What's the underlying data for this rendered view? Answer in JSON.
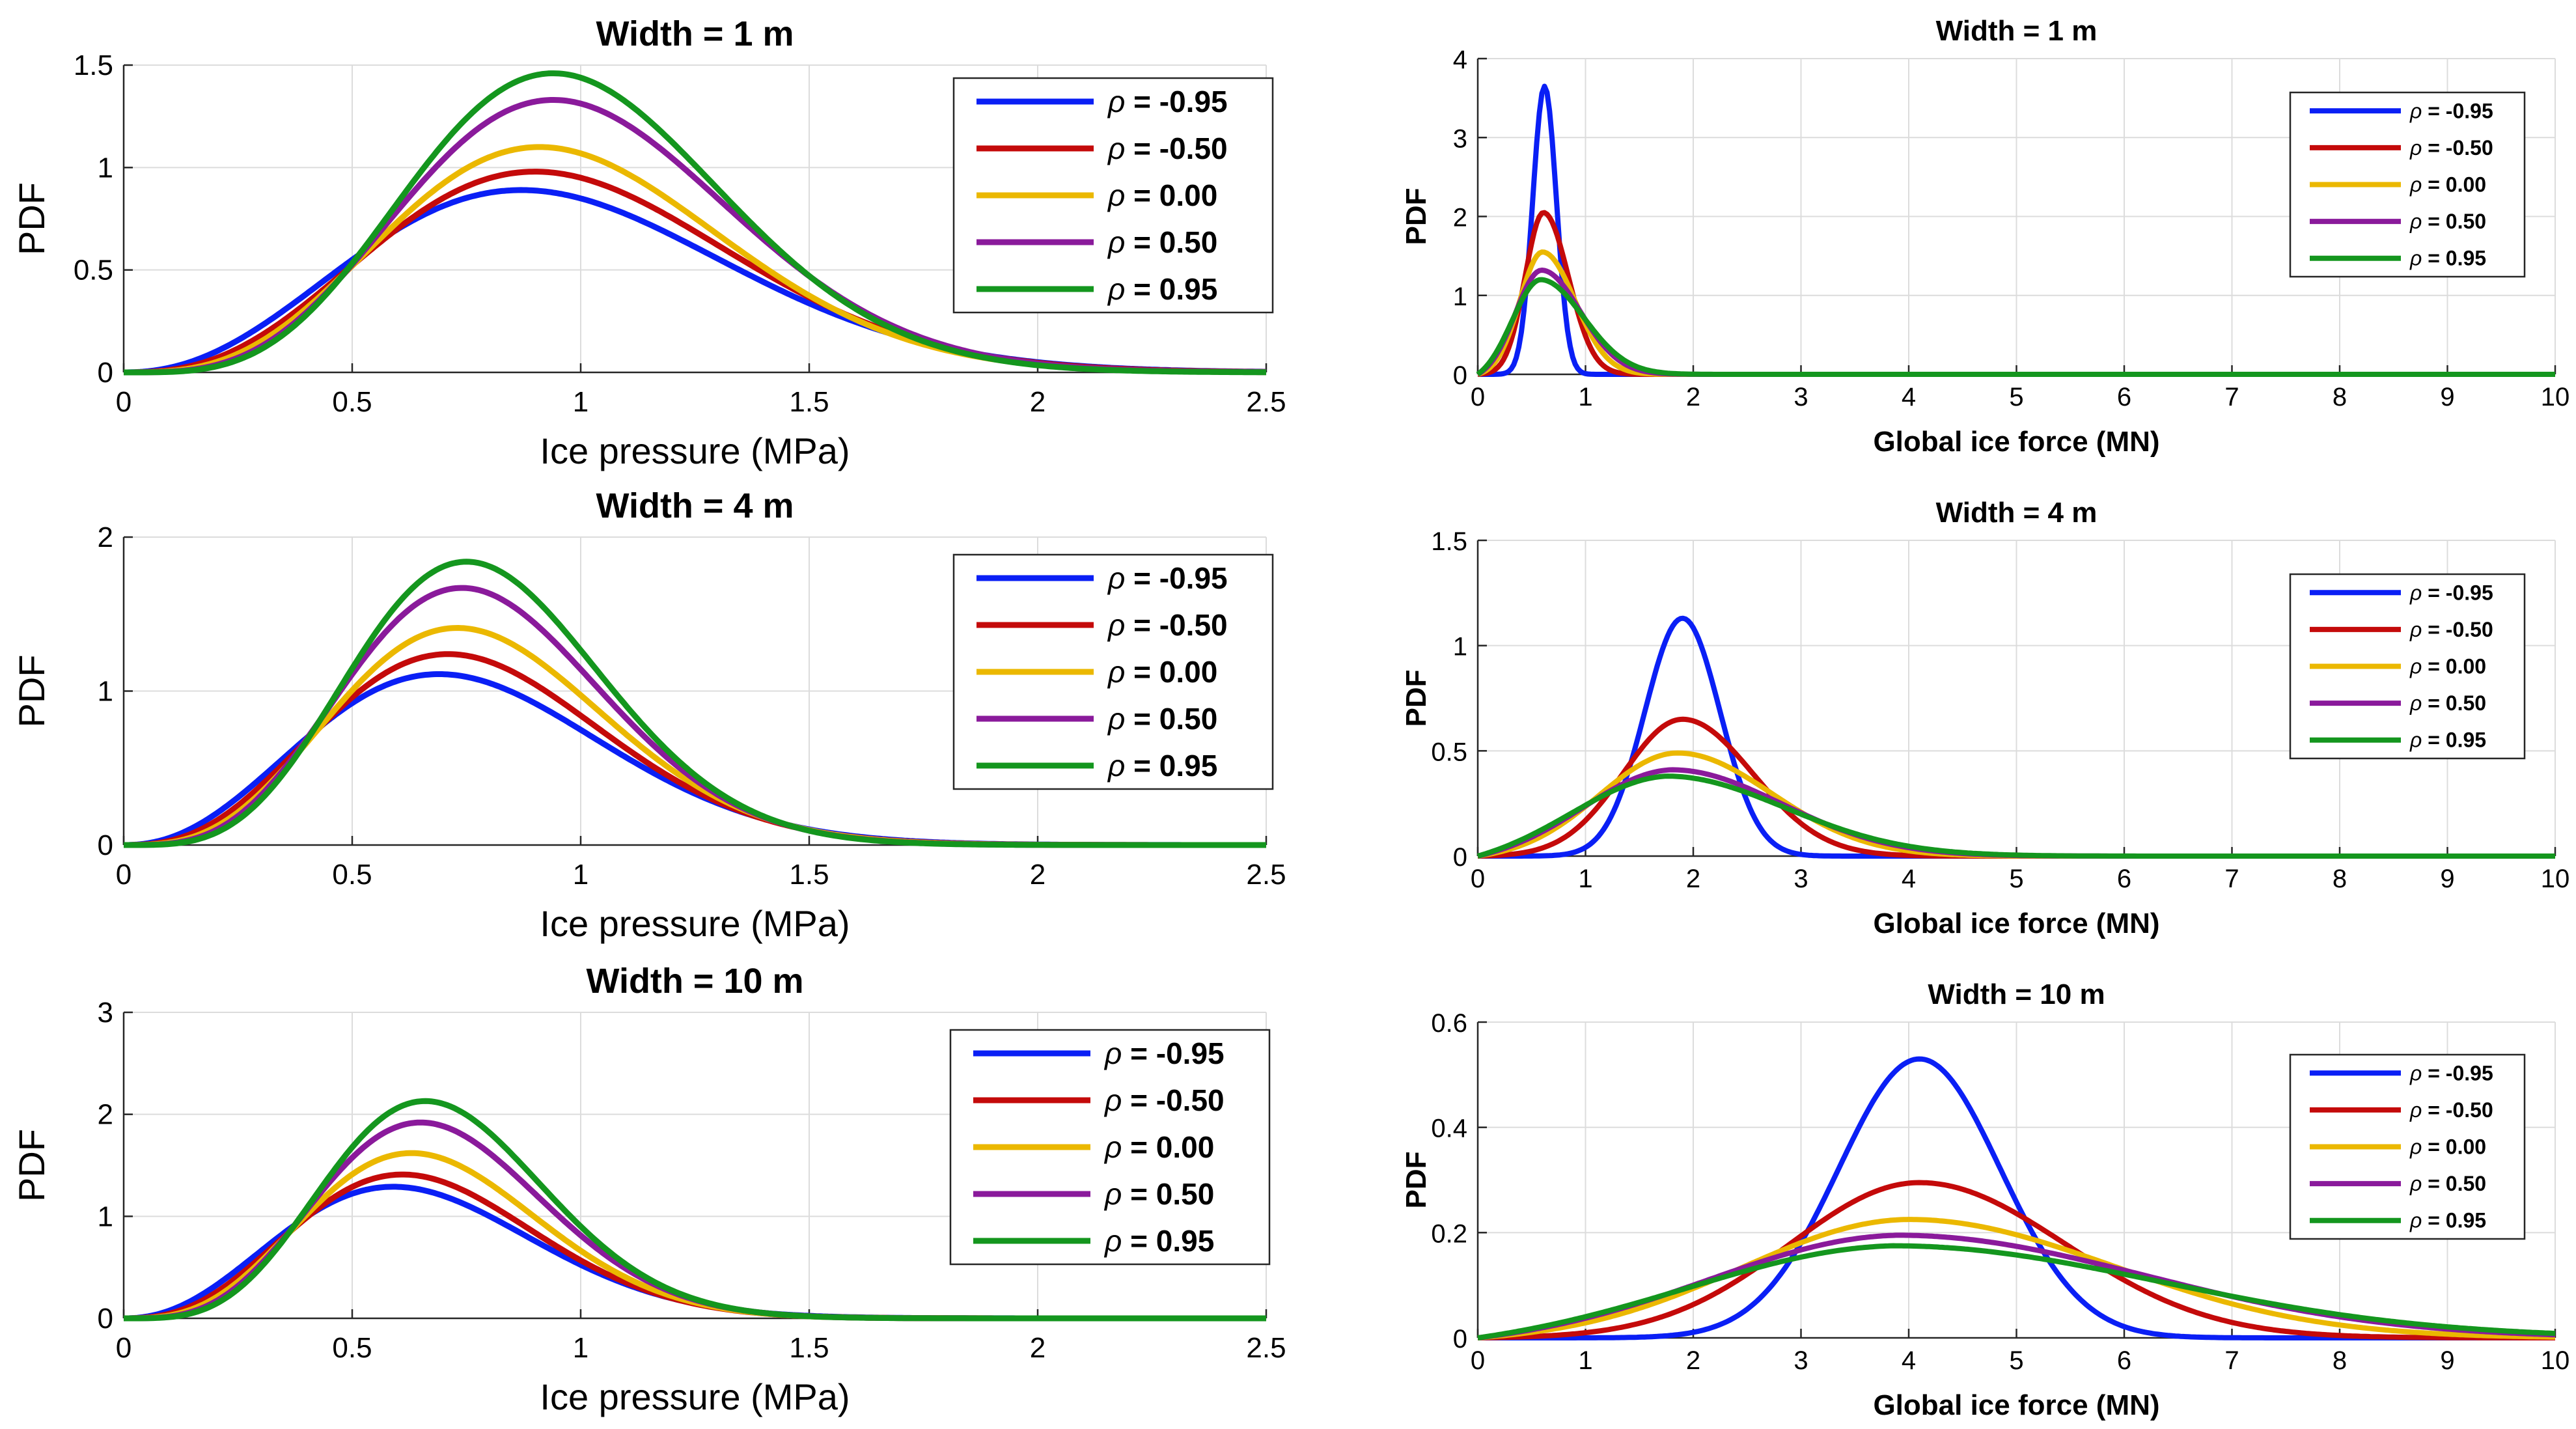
{
  "series_style": [
    {
      "name": "ρ = -0.95",
      "color": "#0a1ff5"
    },
    {
      "name": "ρ = -0.50",
      "color": "#c40a0a"
    },
    {
      "name": "ρ =  0.00",
      "color": "#ebb800"
    },
    {
      "name": "ρ =  0.50",
      "color": "#8a1a9b"
    },
    {
      "name": "ρ =  0.95",
      "color": "#14961e"
    }
  ],
  "chart_data": [
    {
      "type": "line",
      "title": "Width = 1 m",
      "xlabel": "Ice pressure (MPa)",
      "ylabel": "PDF",
      "xlim": [
        0,
        2.5
      ],
      "ylim": [
        0,
        1.5
      ],
      "grid": true,
      "legend": "top-right",
      "x_ticks": [
        "0",
        "0.5",
        "1",
        "1.5",
        "2",
        "2.5"
      ],
      "y_ticks": [
        "0",
        "0.5",
        "1",
        "1.5"
      ],
      "series": [
        {
          "name": "ρ = -0.95",
          "legend_label": "-0.95",
          "peak_x": 0.87,
          "peak_y": 0.89,
          "shape_k": 2.2
        },
        {
          "name": "ρ = -0.50",
          "legend_label": "-0.50",
          "peak_x": 0.9,
          "peak_y": 0.98,
          "shape_k": 2.6
        },
        {
          "name": "ρ = 0.00",
          "legend_label": " 0.00",
          "peak_x": 0.91,
          "peak_y": 1.1,
          "shape_k": 3.0
        },
        {
          "name": "ρ = 0.50",
          "legend_label": " 0.50",
          "peak_x": 0.94,
          "peak_y": 1.33,
          "shape_k": 3.4
        },
        {
          "name": "ρ = 0.95",
          "legend_label": " 0.95",
          "peak_x": 0.94,
          "peak_y": 1.46,
          "shape_k": 3.7
        }
      ]
    },
    {
      "type": "line",
      "title": "Width = 4 m",
      "xlabel": "Ice pressure (MPa)",
      "ylabel": "PDF",
      "xlim": [
        0,
        2.5
      ],
      "ylim": [
        0,
        2
      ],
      "grid": true,
      "legend": "top-right",
      "x_ticks": [
        "0",
        "0.5",
        "1",
        "1.5",
        "2",
        "2.5"
      ],
      "y_ticks": [
        "0",
        "1",
        "2"
      ],
      "series": [
        {
          "name": "ρ = -0.95",
          "legend_label": "-0.95",
          "peak_x": 0.69,
          "peak_y": 1.11,
          "shape_k": 2.2
        },
        {
          "name": "ρ = -0.50",
          "legend_label": "-0.50",
          "peak_x": 0.71,
          "peak_y": 1.24,
          "shape_k": 2.6
        },
        {
          "name": "ρ = 0.00",
          "legend_label": " 0.00",
          "peak_x": 0.73,
          "peak_y": 1.41,
          "shape_k": 3.0
        },
        {
          "name": "ρ = 0.50",
          "legend_label": " 0.50",
          "peak_x": 0.74,
          "peak_y": 1.67,
          "shape_k": 3.4
        },
        {
          "name": "ρ = 0.95",
          "legend_label": " 0.95",
          "peak_x": 0.75,
          "peak_y": 1.84,
          "shape_k": 3.7
        }
      ]
    },
    {
      "type": "line",
      "title": "Width = 10 m",
      "xlabel": "Ice pressure (MPa)",
      "ylabel": "PDF",
      "xlim": [
        0,
        2.5
      ],
      "ylim": [
        0,
        3
      ],
      "grid": true,
      "legend": "top-right",
      "x_ticks": [
        "0",
        "0.5",
        "1",
        "1.5",
        "2",
        "2.5"
      ],
      "y_ticks": [
        "0",
        "1",
        "2",
        "3"
      ],
      "series": [
        {
          "name": "ρ = -0.95",
          "legend_label": "-0.95",
          "peak_x": 0.59,
          "peak_y": 1.29,
          "shape_k": 2.2
        },
        {
          "name": "ρ = -0.50",
          "legend_label": "-0.50",
          "peak_x": 0.61,
          "peak_y": 1.41,
          "shape_k": 2.6
        },
        {
          "name": "ρ = 0.00",
          "legend_label": " 0.00",
          "peak_x": 0.63,
          "peak_y": 1.62,
          "shape_k": 3.0
        },
        {
          "name": "ρ = 0.50",
          "legend_label": " 0.50",
          "peak_x": 0.65,
          "peak_y": 1.92,
          "shape_k": 3.4
        },
        {
          "name": "ρ = 0.95",
          "legend_label": " 0.95",
          "peak_x": 0.66,
          "peak_y": 2.13,
          "shape_k": 3.7
        }
      ]
    },
    {
      "type": "line",
      "title": "Width = 1 m",
      "xlabel": "Global ice force (MN)",
      "ylabel": "PDF",
      "xlim": [
        0,
        10
      ],
      "ylim": [
        0,
        4
      ],
      "grid": true,
      "legend": "top-right",
      "x_ticks": [
        "0",
        "1",
        "2",
        "3",
        "4",
        "5",
        "6",
        "7",
        "8",
        "9",
        "10"
      ],
      "y_ticks": [
        "0",
        "1",
        "2",
        "3",
        "4"
      ],
      "series": [
        {
          "name": "ρ = -0.95",
          "legend_label": "-0.95",
          "peak_x": 0.62,
          "peak_y": 3.65,
          "left_sd": 0.11,
          "right_sd": 0.11
        },
        {
          "name": "ρ = -0.50",
          "legend_label": "-0.50",
          "peak_x": 0.61,
          "peak_y": 2.05,
          "left_sd": 0.17,
          "right_sd": 0.23
        },
        {
          "name": "ρ = 0.00",
          "legend_label": " 0.00",
          "peak_x": 0.6,
          "peak_y": 1.55,
          "left_sd": 0.21,
          "right_sd": 0.3
        },
        {
          "name": "ρ = 0.50",
          "legend_label": " 0.50",
          "peak_x": 0.59,
          "peak_y": 1.32,
          "left_sd": 0.24,
          "right_sd": 0.36
        },
        {
          "name": "ρ = 0.95",
          "legend_label": " 0.95",
          "peak_x": 0.58,
          "peak_y": 1.2,
          "left_sd": 0.26,
          "right_sd": 0.4
        }
      ]
    },
    {
      "type": "line",
      "title": "Width = 4 m",
      "xlabel": "Global ice force (MN)",
      "ylabel": "PDF",
      "xlim": [
        0,
        10
      ],
      "ylim": [
        0,
        1.5
      ],
      "grid": true,
      "legend": "top-right",
      "x_ticks": [
        "0",
        "1",
        "2",
        "3",
        "4",
        "5",
        "6",
        "7",
        "8",
        "9",
        "10"
      ],
      "y_ticks": [
        "0",
        "0.5",
        "1",
        "1.5"
      ],
      "series": [
        {
          "name": "ρ = -0.95",
          "legend_label": "-0.95",
          "peak_x": 1.9,
          "peak_y": 1.13,
          "left_sd": 0.35,
          "right_sd": 0.35
        },
        {
          "name": "ρ = -0.50",
          "legend_label": "-0.50",
          "peak_x": 1.9,
          "peak_y": 0.65,
          "left_sd": 0.55,
          "right_sd": 0.65
        },
        {
          "name": "ρ = 0.00",
          "legend_label": " 0.00",
          "peak_x": 1.85,
          "peak_y": 0.49,
          "left_sd": 0.72,
          "right_sd": 0.88
        },
        {
          "name": "ρ = 0.50",
          "legend_label": " 0.50",
          "peak_x": 1.8,
          "peak_y": 0.41,
          "left_sd": 0.82,
          "right_sd": 1.02
        },
        {
          "name": "ρ = 0.95",
          "legend_label": " 0.95",
          "peak_x": 1.75,
          "peak_y": 0.38,
          "left_sd": 0.88,
          "right_sd": 1.1
        }
      ]
    },
    {
      "type": "line",
      "title": "Width = 10 m",
      "xlabel": "Global ice force (MN)",
      "ylabel": "PDF",
      "xlim": [
        0,
        10
      ],
      "ylim": [
        0,
        0.6
      ],
      "grid": true,
      "legend": "top-right",
      "x_ticks": [
        "0",
        "1",
        "2",
        "3",
        "4",
        "5",
        "6",
        "7",
        "8",
        "9",
        "10"
      ],
      "y_ticks": [
        "0",
        "0.2",
        "0.4",
        "0.6"
      ],
      "series": [
        {
          "name": "ρ = -0.95",
          "legend_label": "-0.95",
          "peak_x": 4.1,
          "peak_y": 0.53,
          "left_sd": 0.75,
          "right_sd": 0.75
        },
        {
          "name": "ρ = -0.50",
          "legend_label": "-0.50",
          "peak_x": 4.1,
          "peak_y": 0.295,
          "left_sd": 1.2,
          "right_sd": 1.35
        },
        {
          "name": "ρ = 0.00",
          "legend_label": " 0.00",
          "peak_x": 4.0,
          "peak_y": 0.225,
          "left_sd": 1.55,
          "right_sd": 1.9
        },
        {
          "name": "ρ = 0.50",
          "legend_label": " 0.50",
          "peak_x": 3.9,
          "peak_y": 0.195,
          "left_sd": 1.75,
          "right_sd": 2.3
        },
        {
          "name": "ρ = 0.95",
          "legend_label": " 0.95",
          "peak_x": 3.85,
          "peak_y": 0.175,
          "left_sd": 1.9,
          "right_sd": 2.5
        }
      ]
    }
  ]
}
